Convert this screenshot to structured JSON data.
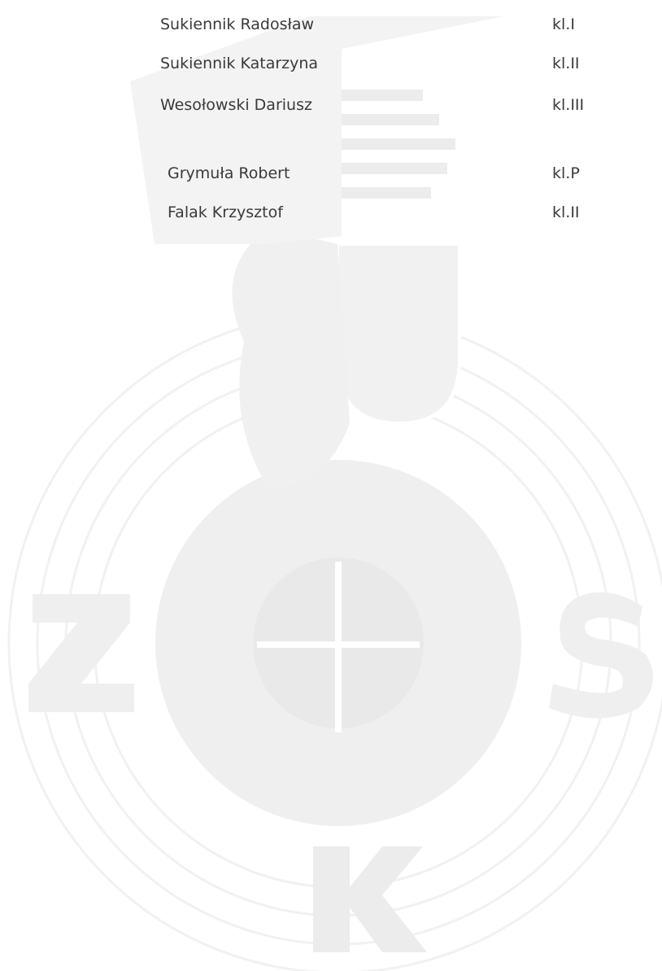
{
  "groups": [
    [
      {
        "name": "Sukiennik Radosław",
        "class": "kl.I"
      },
      {
        "name": "Sukiennik Katarzyna",
        "class": "kl.II"
      },
      {
        "name": "Wesołowski Dariusz",
        "class": "kl.III"
      }
    ],
    [
      {
        "name": "Grymuła Robert",
        "class": "kl.P"
      },
      {
        "name": "Falak Krzysztof",
        "class": "kl.II"
      }
    ]
  ]
}
